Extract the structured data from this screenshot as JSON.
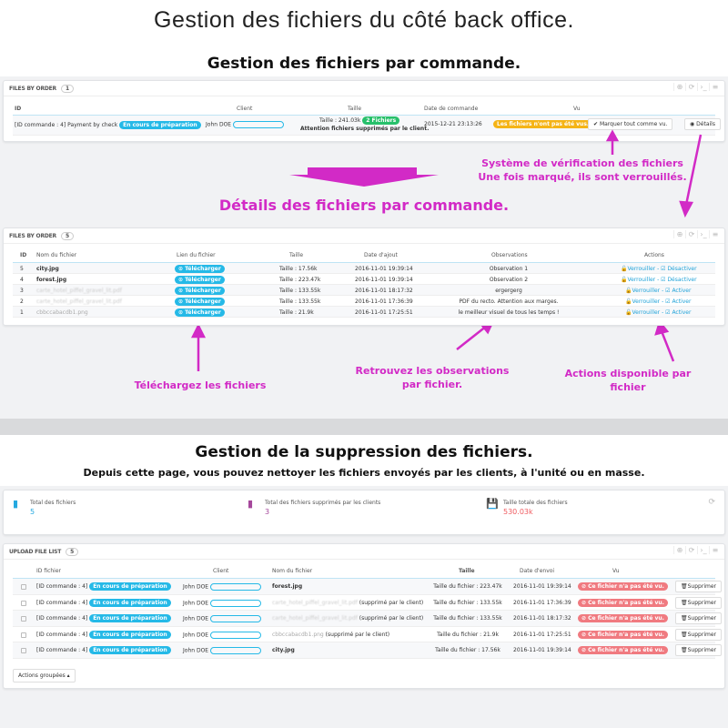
{
  "title": "Gestion des fichiers du côté back office.",
  "section1": {
    "heading": "Gestion des fichiers par commande.",
    "panel_title": "FILES BY ORDER",
    "count": "1",
    "columns": [
      "ID",
      "Client",
      "Taille",
      "Date de commande",
      "Vu"
    ],
    "row": {
      "id": "[ID commande : 4] Payment by check",
      "status": "En cours de préparation",
      "client": "John DOE",
      "taille": "Taille : 241.03k",
      "files_badge": "2 Fichiers",
      "warning": "Attention fichiers supprimés par le client.",
      "date": "2015-12-21 23:13:26",
      "vu_badge": "Les fichiers n'ont pas été vus.",
      "mark_button": "Marquer tout comme vu.",
      "details_button": "Détails"
    },
    "annotation": [
      "Système de vérification des fichiers",
      "Une fois marqué, ils sont verrouillés."
    ]
  },
  "section2": {
    "heading": "Détails des fichiers par commande.",
    "panel_title": "FILES BY ORDER",
    "count": "5",
    "columns": [
      "ID",
      "Nom du fichier",
      "Lien du fichier",
      "Taille",
      "Date d'ajout",
      "Observations",
      "Actions"
    ],
    "download_label": "Télécharger",
    "rows": [
      {
        "id": "5",
        "name": "city.jpg",
        "size": "Taille : 17.56k",
        "date": "2016-11-01 19:39:14",
        "obs": "Observation 1",
        "lock": "Verrouiller",
        "toggle": "Désactiver",
        "deleted": false
      },
      {
        "id": "4",
        "name": "forest.jpg",
        "size": "Taille : 223.47k",
        "date": "2016-11-01 19:39:14",
        "obs": "Observation 2",
        "lock": "Verrouiller",
        "toggle": "Désactiver",
        "deleted": false
      },
      {
        "id": "3",
        "name": "carte_hotel_piffel_gravel_lit.pdf",
        "size": "Taille : 133.55k",
        "date": "2016-11-01 18:17:32",
        "obs": "ergergerg",
        "lock": "Verrouiller",
        "toggle": "Activer",
        "deleted": true
      },
      {
        "id": "2",
        "name": "carte_hotel_piffel_gravel_lit.pdf",
        "size": "Taille : 133.55k",
        "date": "2016-11-01 17:36:39",
        "obs": "PDF du recto. Attention aux marges.",
        "lock": "Verrouiller",
        "toggle": "Activer",
        "deleted": true
      },
      {
        "id": "1",
        "name": "cbbccabacdb1.png",
        "size": "Taille : 21.9k",
        "date": "2016-11-01 17:25:51",
        "obs": "le meilleur visuel de tous les temps !",
        "lock": "Verrouiller",
        "toggle": "Activer",
        "deleted": true
      }
    ],
    "annotations": {
      "download": "Téléchargez les fichiers",
      "observations": [
        "Retrouvez les observations",
        "par fichier."
      ],
      "actions": "Actions disponible par fichier"
    }
  },
  "section3": {
    "heading": "Gestion de la suppression des fichiers.",
    "subheading": "Depuis cette page, vous pouvez nettoyer les fichiers envoyés par les clients, à l'unité ou en masse.",
    "stats": [
      {
        "label": "Total des fichiers",
        "value": "5",
        "color": "#25a9e0"
      },
      {
        "label": "Total des fichiers supprimés par les clients",
        "value": "3",
        "color": "#a5479b"
      },
      {
        "label": "Taille totale des fichiers",
        "value": "530.03k",
        "color": "#ef5a5f"
      }
    ],
    "panel_title": "UPLOAD FILE LIST",
    "count": "5",
    "columns": [
      "ID fichier",
      "Client",
      "Nom du fichier",
      "Taille",
      "Date d'envoi",
      "Vu"
    ],
    "id_label": "[ID commande : 4]",
    "status": "En cours de préparation",
    "client": "John DOE",
    "seen_label": "Ce fichier n'a pas été vu.",
    "delete_label": "Supprimer",
    "deleted_suffix": "(supprimé par le client)",
    "rows": [
      {
        "name": "forest.jpg",
        "size": "Taille du fichier : 223.47k",
        "date": "2016-11-01 19:39:14",
        "deleted": false
      },
      {
        "name": "carte_hotel_piffel_gravel_lit.pdf",
        "size": "Taille du fichier : 133.55k",
        "date": "2016-11-01 17:36:39",
        "deleted": true
      },
      {
        "name": "carte_hotel_piffel_gravel_lit.pdf",
        "size": "Taille du fichier : 133.55k",
        "date": "2016-11-01 18:17:32",
        "deleted": true
      },
      {
        "name": "cbbccabacdb1.png",
        "size": "Taille du fichier : 21.9k",
        "date": "2016-11-01 17:25:51",
        "deleted": true
      },
      {
        "name": "city.jpg",
        "size": "Taille du fichier : 17.56k",
        "date": "2016-11-01 19:39:14",
        "deleted": false
      }
    ],
    "bulk_actions": "Actions groupées"
  },
  "colors": {
    "accent": "#25b9e7",
    "annotation": "#d22ac6",
    "warning": "#f5a623",
    "danger": "#f07a80",
    "success": "#27c06b"
  }
}
